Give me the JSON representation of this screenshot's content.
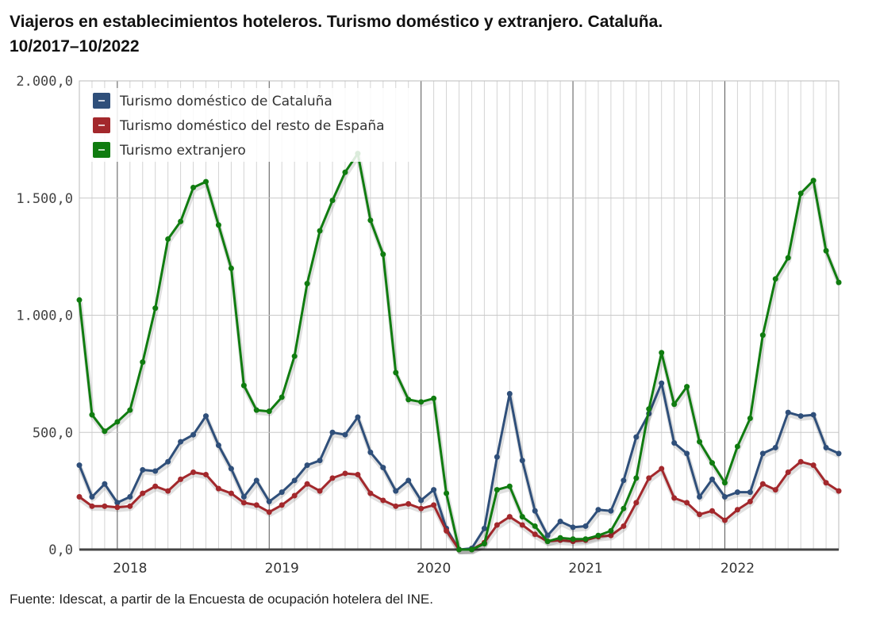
{
  "title_line1": "Viajeros en establecimientos hoteleros. Turismo doméstico y extranjero. Cataluña.",
  "title_line2": "10/2017–10/2022",
  "source": "Fuente: Idescat, a partir de la Encuesta de ocupación hotelera del INE.",
  "chart_data": {
    "type": "line",
    "title": "Viajeros en establecimientos hoteleros. Turismo doméstico y extranjero. Cataluña. 10/2017–10/2022",
    "x_start": "2017-10",
    "x_end": "2022-10",
    "year_ticks": [
      "2018",
      "2019",
      "2020",
      "2021",
      "2022"
    ],
    "y_ticks": [
      "0,0",
      "500,0",
      "1.000,0",
      "1.500,0",
      "2.000,0"
    ],
    "ylim": [
      0,
      2000
    ],
    "grid": true,
    "legend_position": "top-left",
    "series": [
      {
        "name": "Turismo doméstico de Cataluña",
        "color": "#2f4f7a",
        "values": [
          360,
          225,
          280,
          200,
          225,
          340,
          335,
          375,
          460,
          490,
          570,
          445,
          345,
          225,
          295,
          205,
          245,
          295,
          360,
          380,
          500,
          490,
          565,
          415,
          350,
          250,
          295,
          210,
          255,
          90,
          0,
          5,
          90,
          395,
          665,
          380,
          165,
          60,
          120,
          95,
          100,
          170,
          165,
          295,
          480,
          580,
          710,
          455,
          410,
          225,
          300,
          225,
          245,
          245,
          410,
          435,
          585,
          570,
          575,
          435,
          410
        ]
      },
      {
        "name": "Turismo doméstico del resto de España",
        "color": "#a3282c",
        "values": [
          225,
          185,
          185,
          180,
          185,
          240,
          270,
          250,
          300,
          330,
          320,
          260,
          240,
          200,
          190,
          160,
          190,
          230,
          280,
          250,
          305,
          325,
          320,
          240,
          210,
          185,
          195,
          175,
          190,
          80,
          0,
          0,
          30,
          105,
          140,
          105,
          65,
          35,
          40,
          35,
          40,
          55,
          60,
          100,
          200,
          305,
          345,
          220,
          200,
          150,
          165,
          125,
          170,
          205,
          280,
          255,
          330,
          375,
          360,
          285,
          250
        ]
      },
      {
        "name": "Turismo extranjero",
        "color": "#107c10",
        "values": [
          1065,
          575,
          505,
          545,
          595,
          800,
          1030,
          1325,
          1400,
          1545,
          1570,
          1385,
          1200,
          700,
          595,
          590,
          650,
          825,
          1135,
          1360,
          1490,
          1610,
          1690,
          1405,
          1260,
          755,
          640,
          630,
          645,
          240,
          0,
          0,
          25,
          255,
          270,
          140,
          100,
          35,
          50,
          45,
          45,
          60,
          80,
          175,
          305,
          600,
          840,
          620,
          695,
          460,
          370,
          285,
          440,
          560,
          915,
          1155,
          1245,
          1520,
          1575,
          1275,
          1140
        ]
      }
    ]
  }
}
